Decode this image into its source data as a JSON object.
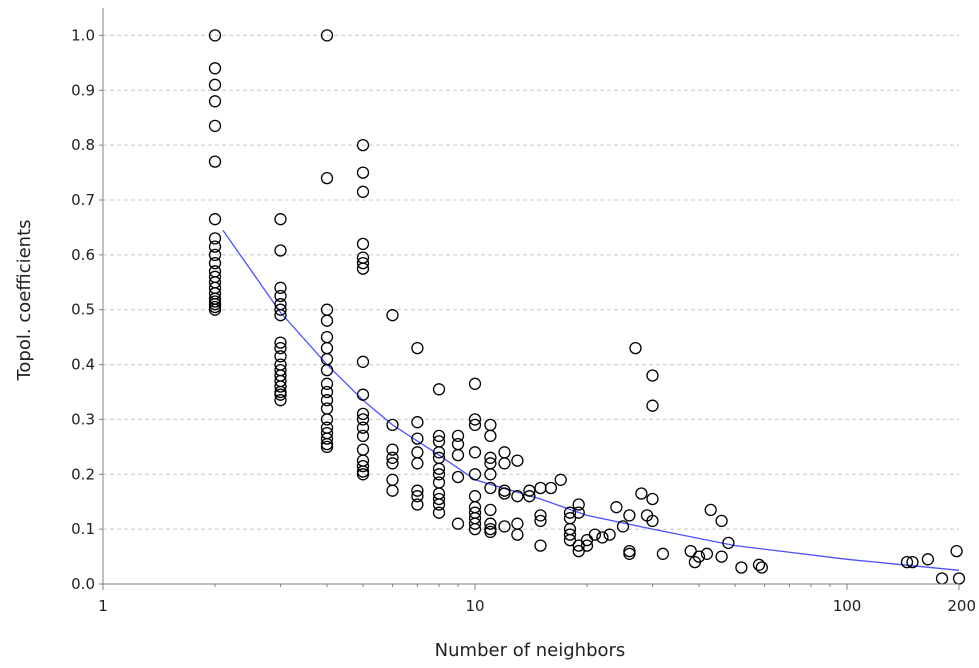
{
  "chart_data": {
    "type": "scatter",
    "xlabel": "Number of neighbors",
    "ylabel": "Topol. coefficients",
    "x_scale": "log",
    "xlim": [
      1,
      200
    ],
    "ylim": [
      0,
      1.05
    ],
    "x_ticks": [
      1,
      10,
      100,
      200
    ],
    "x_tick_labels": [
      "1",
      "10",
      "100",
      "200"
    ],
    "y_ticks": [
      0,
      0.1,
      0.2,
      0.3,
      0.4,
      0.5,
      0.6,
      0.7,
      0.8,
      0.9,
      1.0
    ],
    "y_tick_labels": [
      "0.0",
      "0.1",
      "0.2",
      "0.3",
      "0.4",
      "0.5",
      "0.6",
      "0.7",
      "0.8",
      "0.9",
      "1.0"
    ],
    "grid": "horizontal dashed",
    "colors": {
      "points": "#000000",
      "fit_line": "#4a52ff",
      "grid": "#c8c8c8",
      "axis": "#808080"
    },
    "series": [
      {
        "kind": "points",
        "points": [
          [
            2,
            1.0
          ],
          [
            2,
            0.94
          ],
          [
            2,
            0.91
          ],
          [
            2,
            0.88
          ],
          [
            2,
            0.835
          ],
          [
            2,
            0.77
          ],
          [
            2,
            0.665
          ],
          [
            2,
            0.63
          ],
          [
            2,
            0.615
          ],
          [
            2,
            0.6
          ],
          [
            2,
            0.585
          ],
          [
            2,
            0.57
          ],
          [
            2,
            0.56
          ],
          [
            2,
            0.55
          ],
          [
            2,
            0.54
          ],
          [
            2,
            0.53
          ],
          [
            2,
            0.52
          ],
          [
            2,
            0.515
          ],
          [
            2,
            0.51
          ],
          [
            2,
            0.505
          ],
          [
            2,
            0.5
          ],
          [
            3,
            0.665
          ],
          [
            3,
            0.608
          ],
          [
            3,
            0.54
          ],
          [
            3,
            0.525
          ],
          [
            3,
            0.51
          ],
          [
            3,
            0.5
          ],
          [
            3,
            0.49
          ],
          [
            3,
            0.44
          ],
          [
            3,
            0.43
          ],
          [
            3,
            0.415
          ],
          [
            3,
            0.4
          ],
          [
            3,
            0.39
          ],
          [
            3,
            0.38
          ],
          [
            3,
            0.37
          ],
          [
            3,
            0.36
          ],
          [
            3,
            0.35
          ],
          [
            3,
            0.345
          ],
          [
            3,
            0.335
          ],
          [
            4,
            1.0
          ],
          [
            4,
            0.74
          ],
          [
            4,
            0.5
          ],
          [
            4,
            0.48
          ],
          [
            4,
            0.45
          ],
          [
            4,
            0.43
          ],
          [
            4,
            0.41
          ],
          [
            4,
            0.39
          ],
          [
            4,
            0.365
          ],
          [
            4,
            0.35
          ],
          [
            4,
            0.335
          ],
          [
            4,
            0.32
          ],
          [
            4,
            0.3
          ],
          [
            4,
            0.285
          ],
          [
            4,
            0.275
          ],
          [
            4,
            0.265
          ],
          [
            4,
            0.255
          ],
          [
            4,
            0.25
          ],
          [
            5,
            0.8
          ],
          [
            5,
            0.75
          ],
          [
            5,
            0.715
          ],
          [
            5,
            0.62
          ],
          [
            5,
            0.595
          ],
          [
            5,
            0.585
          ],
          [
            5,
            0.575
          ],
          [
            5,
            0.405
          ],
          [
            5,
            0.345
          ],
          [
            5,
            0.31
          ],
          [
            5,
            0.3
          ],
          [
            5,
            0.285
          ],
          [
            5,
            0.27
          ],
          [
            5,
            0.245
          ],
          [
            5,
            0.225
          ],
          [
            5,
            0.215
          ],
          [
            5,
            0.205
          ],
          [
            5,
            0.2
          ],
          [
            6,
            0.29
          ],
          [
            6,
            0.245
          ],
          [
            6,
            0.23
          ],
          [
            6,
            0.22
          ],
          [
            6,
            0.19
          ],
          [
            6,
            0.17
          ],
          [
            6,
            0.49
          ],
          [
            7,
            0.43
          ],
          [
            7,
            0.295
          ],
          [
            7,
            0.265
          ],
          [
            7,
            0.24
          ],
          [
            7,
            0.22
          ],
          [
            7,
            0.17
          ],
          [
            7,
            0.16
          ],
          [
            7,
            0.145
          ],
          [
            8,
            0.355
          ],
          [
            8,
            0.27
          ],
          [
            8,
            0.26
          ],
          [
            8,
            0.24
          ],
          [
            8,
            0.23
          ],
          [
            8,
            0.21
          ],
          [
            8,
            0.2
          ],
          [
            8,
            0.185
          ],
          [
            8,
            0.165
          ],
          [
            8,
            0.155
          ],
          [
            8,
            0.145
          ],
          [
            8,
            0.13
          ],
          [
            9,
            0.27
          ],
          [
            9,
            0.255
          ],
          [
            9,
            0.235
          ],
          [
            9,
            0.195
          ],
          [
            9,
            0.11
          ],
          [
            10,
            0.365
          ],
          [
            10,
            0.3
          ],
          [
            10,
            0.29
          ],
          [
            10,
            0.24
          ],
          [
            10,
            0.2
          ],
          [
            10,
            0.16
          ],
          [
            10,
            0.14
          ],
          [
            10,
            0.13
          ],
          [
            10,
            0.12
          ],
          [
            10,
            0.11
          ],
          [
            10,
            0.1
          ],
          [
            11,
            0.29
          ],
          [
            11,
            0.27
          ],
          [
            11,
            0.23
          ],
          [
            11,
            0.22
          ],
          [
            11,
            0.2
          ],
          [
            11,
            0.175
          ],
          [
            11,
            0.135
          ],
          [
            11,
            0.11
          ],
          [
            11,
            0.1
          ],
          [
            11,
            0.095
          ],
          [
            12,
            0.24
          ],
          [
            12,
            0.22
          ],
          [
            12,
            0.17
          ],
          [
            12,
            0.165
          ],
          [
            12,
            0.105
          ],
          [
            13,
            0.225
          ],
          [
            13,
            0.16
          ],
          [
            13,
            0.11
          ],
          [
            13,
            0.09
          ],
          [
            14,
            0.17
          ],
          [
            14,
            0.16
          ],
          [
            15,
            0.175
          ],
          [
            15,
            0.125
          ],
          [
            15,
            0.115
          ],
          [
            15,
            0.07
          ],
          [
            16,
            0.175
          ],
          [
            17,
            0.19
          ],
          [
            18,
            0.13
          ],
          [
            18,
            0.12
          ],
          [
            18,
            0.1
          ],
          [
            18,
            0.09
          ],
          [
            18,
            0.08
          ],
          [
            19,
            0.145
          ],
          [
            19,
            0.13
          ],
          [
            19,
            0.07
          ],
          [
            19,
            0.06
          ],
          [
            20,
            0.08
          ],
          [
            20,
            0.07
          ],
          [
            21,
            0.09
          ],
          [
            22,
            0.085
          ],
          [
            23,
            0.09
          ],
          [
            24,
            0.14
          ],
          [
            25,
            0.105
          ],
          [
            26,
            0.125
          ],
          [
            26,
            0.06
          ],
          [
            26,
            0.055
          ],
          [
            27,
            0.43
          ],
          [
            28,
            0.165
          ],
          [
            29,
            0.125
          ],
          [
            30,
            0.38
          ],
          [
            30,
            0.325
          ],
          [
            30,
            0.155
          ],
          [
            30,
            0.115
          ],
          [
            32,
            0.055
          ],
          [
            38,
            0.06
          ],
          [
            39,
            0.04
          ],
          [
            40,
            0.05
          ],
          [
            42,
            0.055
          ],
          [
            43,
            0.135
          ],
          [
            46,
            0.115
          ],
          [
            46,
            0.05
          ],
          [
            48,
            0.075
          ],
          [
            52,
            0.03
          ],
          [
            58,
            0.035
          ],
          [
            59,
            0.03
          ],
          [
            145,
            0.04
          ],
          [
            150,
            0.04
          ],
          [
            165,
            0.045
          ],
          [
            180,
            0.01
          ],
          [
            197,
            0.06
          ],
          [
            200,
            0.01
          ]
        ]
      },
      {
        "kind": "fit",
        "points": [
          [
            2.1,
            0.645
          ],
          [
            3,
            0.495
          ],
          [
            4,
            0.4
          ],
          [
            5,
            0.335
          ],
          [
            6,
            0.29
          ],
          [
            8,
            0.235
          ],
          [
            10,
            0.19
          ],
          [
            15,
            0.155
          ],
          [
            20,
            0.125
          ],
          [
            30,
            0.1
          ],
          [
            50,
            0.07
          ],
          [
            100,
            0.045
          ],
          [
            200,
            0.025
          ]
        ]
      }
    ]
  }
}
